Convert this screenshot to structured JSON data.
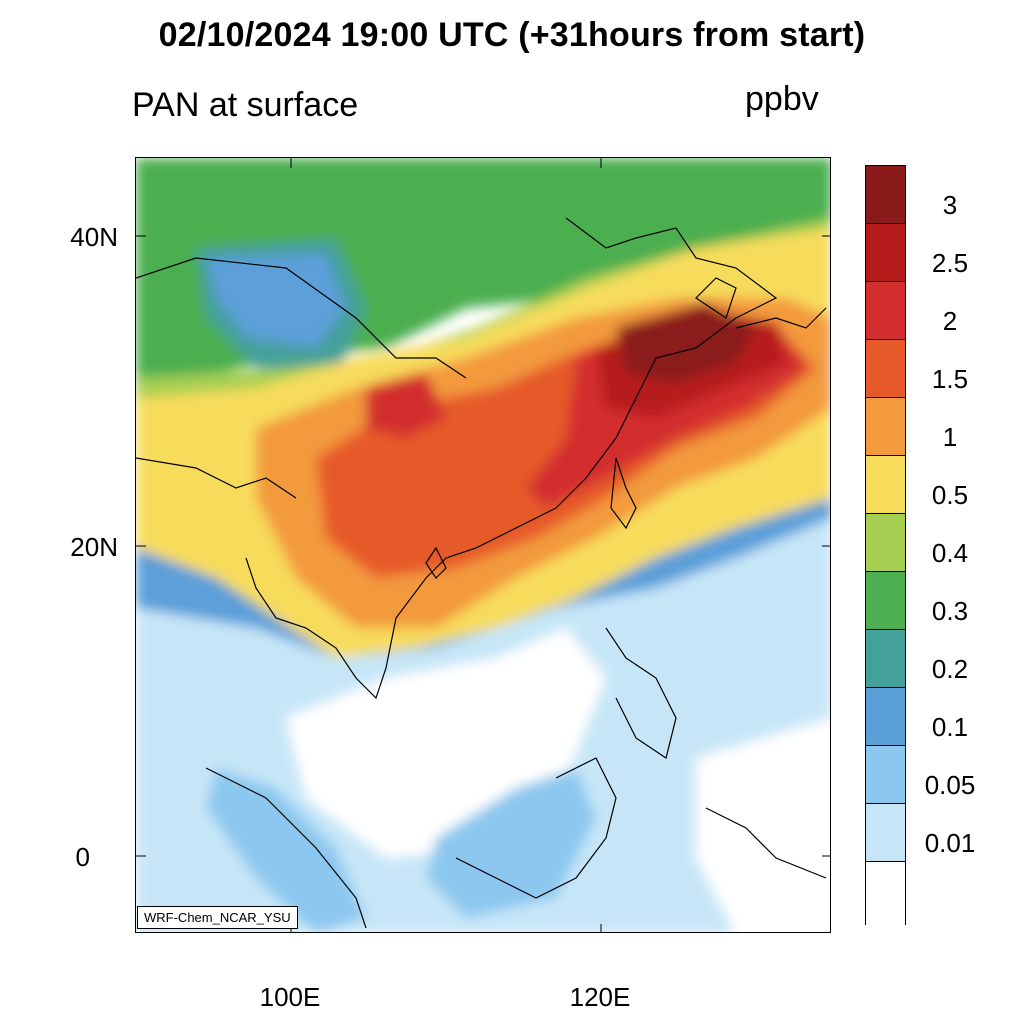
{
  "title": "02/10/2024 19:00 UTC (+31hours from start)",
  "subtitle": "PAN at surface",
  "units": "ppbv",
  "credit": "WRF-Chem_NCAR_YSU",
  "axes": {
    "lat_labels": [
      "40N",
      "20N",
      "0"
    ],
    "lon_labels": [
      "100E",
      "120E"
    ]
  },
  "legend": {
    "colors": [
      "#8b1a1a",
      "#b71c1c",
      "#d32f2f",
      "#e65a2a",
      "#f39a3c",
      "#f7dc5c",
      "#a6cf52",
      "#4caf50",
      "#44a09a",
      "#5b9fd9",
      "#8cc7ef",
      "#c6e6f7",
      "#ffffff"
    ],
    "labels": [
      "3",
      "2.5",
      "2",
      "1.5",
      "1",
      "0.5",
      "0.4",
      "0.3",
      "0.2",
      "0.1",
      "0.05",
      "0.01"
    ]
  }
}
